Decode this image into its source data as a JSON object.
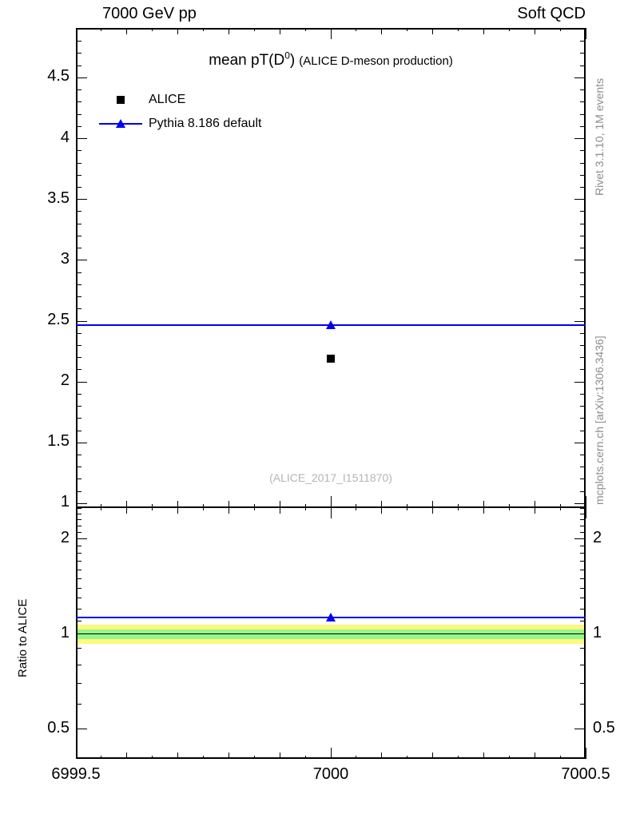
{
  "header": {
    "left": "7000 GeV pp",
    "right": "Soft QCD"
  },
  "title": {
    "main_pre": "mean pT(D",
    "main_sup": "0",
    "main_post": ")",
    "note": "(ALICE D-meson production)"
  },
  "legend": {
    "items": [
      {
        "label": "ALICE",
        "marker": "black-square",
        "color": "#000000"
      },
      {
        "label": "Pythia 8.186 default",
        "marker": "blue-line-triangle",
        "color": "#0000ee"
      }
    ]
  },
  "watermark": "(ALICE_2017_I1511870)",
  "side_notes": {
    "top": "Rivet 3.1.10, 1M events",
    "bottom": "mcplots.cern.ch [arXiv:1306.3436]"
  },
  "ratio_axis_title": "Ratio to ALICE",
  "colors": {
    "pythia_blue": "#0000ee",
    "band_yellow": "#fff97e",
    "band_green": "#94f78c",
    "frame": "#000000",
    "gray_text": "#8c8c8c"
  },
  "chart_data": {
    "type": "scatter",
    "title": "mean pT(D0) (ALICE D-meson production)",
    "xlabel": "",
    "ylabel": "",
    "xlim": [
      6999.5,
      7000.5
    ],
    "x_major_ticks": [
      6999.5,
      7000,
      7000.5
    ],
    "x_major_labels": [
      "6999.5",
      "7000",
      "7000.5"
    ],
    "x_mid_step": 0.1,
    "x_minor_step": 0.05,
    "main_panel": {
      "scale": "linear",
      "ylim": [
        0.97,
        4.91
      ],
      "y_major_ticks": [
        1,
        1.5,
        2,
        2.5,
        3,
        3.5,
        4,
        4.5
      ],
      "y_minor_step": 0.1,
      "series": [
        {
          "name": "ALICE",
          "marker": "square",
          "color": "#000000",
          "x": 7000,
          "y": 2.19
        },
        {
          "name": "Pythia 8.186 default",
          "marker": "triangle",
          "color": "#0000ee",
          "x": 7000,
          "y": 2.47,
          "line_x": [
            6999.5,
            7000.5
          ],
          "line_y": 2.47
        }
      ]
    },
    "ratio_panel": {
      "scale": "log",
      "ylim": [
        0.403,
        2.52
      ],
      "y_major_ticks": [
        0.5,
        1,
        2
      ],
      "y_major_labels": [
        "0.5",
        "1",
        "2"
      ],
      "y_minor_ticks": [
        0.6,
        0.7,
        0.8,
        0.9,
        1.1,
        1.2,
        1.3,
        1.4,
        1.5,
        1.6,
        1.7,
        1.8,
        1.9,
        2.1,
        2.2,
        2.3,
        2.4,
        2.5
      ],
      "reference": 1,
      "bands": [
        {
          "name": "outer-uncertainty-band",
          "lo": 0.93,
          "hi": 1.07,
          "color": "#fff97e"
        },
        {
          "name": "inner-uncertainty-band",
          "lo": 0.965,
          "hi": 1.035,
          "color": "#94f78c"
        }
      ],
      "series": [
        {
          "name": "Pythia 8.186 default",
          "marker": "triangle",
          "color": "#0000ee",
          "x": 7000,
          "y": 1.13,
          "line_x": [
            6999.5,
            7000.5
          ],
          "line_y": 1.13
        }
      ]
    }
  }
}
